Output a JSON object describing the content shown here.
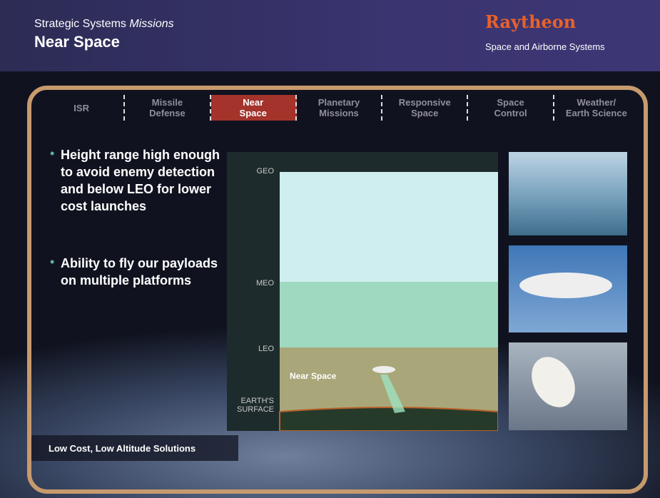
{
  "header": {
    "title_plain": "Strategic Systems",
    "title_italic": "Missions",
    "subtitle": "Near Space",
    "brand": "Raytheon",
    "division": "Space and Airborne Systems"
  },
  "tabs": {
    "items": [
      "ISR",
      "Missile\nDefense",
      "Near\nSpace",
      "Planetary\nMissions",
      "Responsive\nSpace",
      "Space\nControl",
      "Weather/\nEarth Science"
    ],
    "active": 2
  },
  "bullets": [
    "Height range high enough to avoid enemy detection  and below LEO for lower cost launches",
    "Ability to fly our payloads on multiple platforms"
  ],
  "diagram": {
    "levels": [
      "GEO",
      "MEO",
      "LEO",
      "EARTH'S\nSURFACE"
    ],
    "zone_label": "Near Space"
  },
  "footer": {
    "text": "Low Cost, Low Altitude Solutions"
  }
}
